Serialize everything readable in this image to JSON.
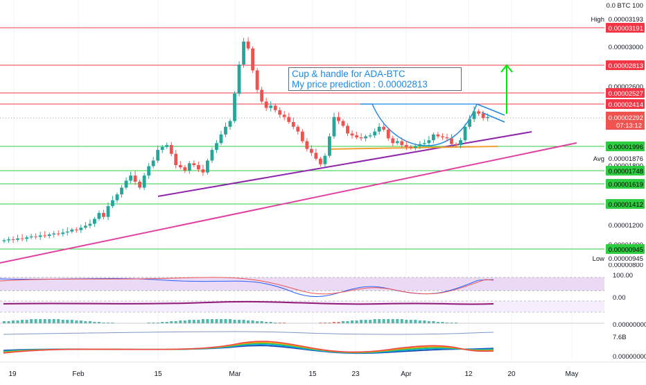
{
  "chart_data": {
    "type": "candlestick",
    "symbol": "ADA-BTC",
    "y_axis_labels": {
      "top_unit": "0.0 BTC 100",
      "ticks": [
        "0.00003000",
        "0.00002600",
        "0.00001800",
        "0.00001200",
        "0.00001000",
        "0.00000800"
      ]
    },
    "price_markers": {
      "high": {
        "label": "High",
        "value": "0.00003193"
      },
      "avg": {
        "label": "Avg",
        "value": "0.00001876"
      },
      "low": {
        "label": "Low",
        "value": "0.00000945"
      },
      "last": {
        "value": "0.00002292",
        "countdown": "07:13:12"
      }
    },
    "horizontal_levels": [
      {
        "value": "0.00003191",
        "color": "#f23645"
      },
      {
        "value": "0.00002813",
        "color": "#f23645"
      },
      {
        "value": "0.00002527",
        "color": "#f23645"
      },
      {
        "value": "0.00002414",
        "color": "#f23645"
      },
      {
        "value": "0.00001996",
        "color": "#2ecc40"
      },
      {
        "value": "0.00001748",
        "color": "#2ecc40"
      },
      {
        "value": "0.00001619",
        "color": "#2ecc40"
      },
      {
        "value": "0.00001412",
        "color": "#2ecc40"
      },
      {
        "value": "0.00000945",
        "color": "#2ecc40"
      }
    ],
    "annotation": {
      "line1": "Cup & handle for ADA-BTC",
      "line2": "My price prediction : 0.00002813"
    },
    "x_axis_labels": [
      "19",
      "Feb",
      "15",
      "Mar",
      "15",
      "23",
      "Apr",
      "12",
      "20",
      "May"
    ],
    "indicator_labels": {
      "rsi_top": "100.00",
      "rsi_bottom": "0.00",
      "macd": "0.00000000",
      "volume": "7.6B",
      "osc": "0.00000000"
    },
    "candles_close": [
      1040,
      1050,
      1045,
      1060,
      1055,
      1070,
      1080,
      1075,
      1090,
      1085,
      1100,
      1110,
      1105,
      1120,
      1130,
      1150,
      1145,
      1170,
      1190,
      1210,
      1260,
      1320,
      1280,
      1390,
      1450,
      1510,
      1580,
      1650,
      1700,
      1640,
      1580,
      1700,
      1790,
      1850,
      1960,
      1990,
      2010,
      1920,
      1800,
      1780,
      1750,
      1820,
      1800,
      1760,
      1730,
      1850,
      1960,
      2030,
      2120,
      2200,
      2260,
      2520,
      2820,
      3050,
      2980,
      2760,
      2560,
      2440,
      2380,
      2400,
      2360,
      2320,
      2300,
      2250,
      2200,
      2150,
      2050,
      1970,
      1930,
      1870,
      1810,
      1900,
      2100,
      2300,
      2260,
      2210,
      2130,
      2110,
      2090,
      2080,
      2100,
      2110,
      2150,
      2200,
      2170,
      2080,
      2030,
      2050,
      2010,
      1990,
      1980,
      2000,
      2020,
      2030,
      2060,
      2120,
      2100,
      2090,
      2080,
      2020,
      2010,
      2060,
      2200,
      2280,
      2350,
      2330,
      2290,
      2300
    ],
    "colors": {
      "up": "#26a69a",
      "down": "#ef5350",
      "cup_line": "#1e88e5",
      "trend_purple": "#8e24aa",
      "trend_pink": "#e040a0",
      "support_orange": "#f0a030",
      "arrow_green": "#00e600"
    }
  }
}
